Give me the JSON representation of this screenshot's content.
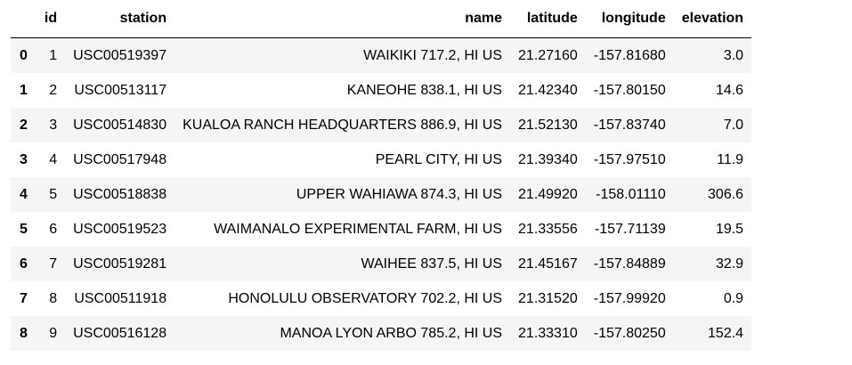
{
  "table": {
    "columns": [
      "",
      "id",
      "station",
      "name",
      "latitude",
      "longitude",
      "elevation"
    ],
    "rows": [
      {
        "index": "0",
        "id": "1",
        "station": "USC00519397",
        "name": "WAIKIKI 717.2, HI US",
        "latitude": "21.27160",
        "longitude": "-157.81680",
        "elevation": "3.0"
      },
      {
        "index": "1",
        "id": "2",
        "station": "USC00513117",
        "name": "KANEOHE 838.1, HI US",
        "latitude": "21.42340",
        "longitude": "-157.80150",
        "elevation": "14.6"
      },
      {
        "index": "2",
        "id": "3",
        "station": "USC00514830",
        "name": "KUALOA RANCH HEADQUARTERS 886.9, HI US",
        "latitude": "21.52130",
        "longitude": "-157.83740",
        "elevation": "7.0"
      },
      {
        "index": "3",
        "id": "4",
        "station": "USC00517948",
        "name": "PEARL CITY, HI US",
        "latitude": "21.39340",
        "longitude": "-157.97510",
        "elevation": "11.9"
      },
      {
        "index": "4",
        "id": "5",
        "station": "USC00518838",
        "name": "UPPER WAHIAWA 874.3, HI US",
        "latitude": "21.49920",
        "longitude": "-158.01110",
        "elevation": "306.6"
      },
      {
        "index": "5",
        "id": "6",
        "station": "USC00519523",
        "name": "WAIMANALO EXPERIMENTAL FARM, HI US",
        "latitude": "21.33556",
        "longitude": "-157.71139",
        "elevation": "19.5"
      },
      {
        "index": "6",
        "id": "7",
        "station": "USC00519281",
        "name": "WAIHEE 837.5, HI US",
        "latitude": "21.45167",
        "longitude": "-157.84889",
        "elevation": "32.9"
      },
      {
        "index": "7",
        "id": "8",
        "station": "USC00511918",
        "name": "HONOLULU OBSERVATORY 702.2, HI US",
        "latitude": "21.31520",
        "longitude": "-157.99920",
        "elevation": "0.9"
      },
      {
        "index": "8",
        "id": "9",
        "station": "USC00516128",
        "name": "MANOA LYON ARBO 785.2, HI US",
        "latitude": "21.33310",
        "longitude": "-157.80250",
        "elevation": "152.4"
      }
    ]
  }
}
